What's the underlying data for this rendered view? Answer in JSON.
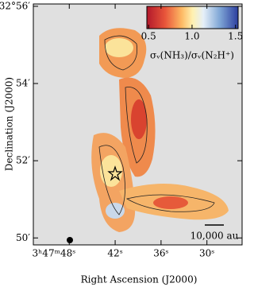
{
  "chart_data": {
    "type": "map",
    "xlabel": "Right Ascension (J2000)",
    "ylabel": "Declination (J2000)",
    "xlim": [
      52.7,
      25.4
    ],
    "xticks": [
      {
        "value": 48,
        "label": "3ʰ47ᵐ48ˢ"
      },
      {
        "value": 42,
        "label": "42ˢ"
      },
      {
        "value": 36,
        "label": "36ˢ"
      },
      {
        "value": 30,
        "label": "30ˢ"
      }
    ],
    "ylim": [
      49.82,
      56.06
    ],
    "yticks": [
      {
        "value": 56,
        "label": "32°56′"
      },
      {
        "value": 54,
        "label": "54′"
      },
      {
        "value": 52,
        "label": "52′"
      },
      {
        "value": 50,
        "label": "50′"
      }
    ],
    "colorbar": {
      "label": "σᵥ(NH₃)/σᵥ(N₂H⁺)",
      "clim": [
        0.48,
        1.53
      ],
      "ticks": [
        0.5,
        {
          "value": 1,
          "label": "1.0"
        },
        1.5
      ]
    },
    "scalebar": "10,000 au"
  }
}
